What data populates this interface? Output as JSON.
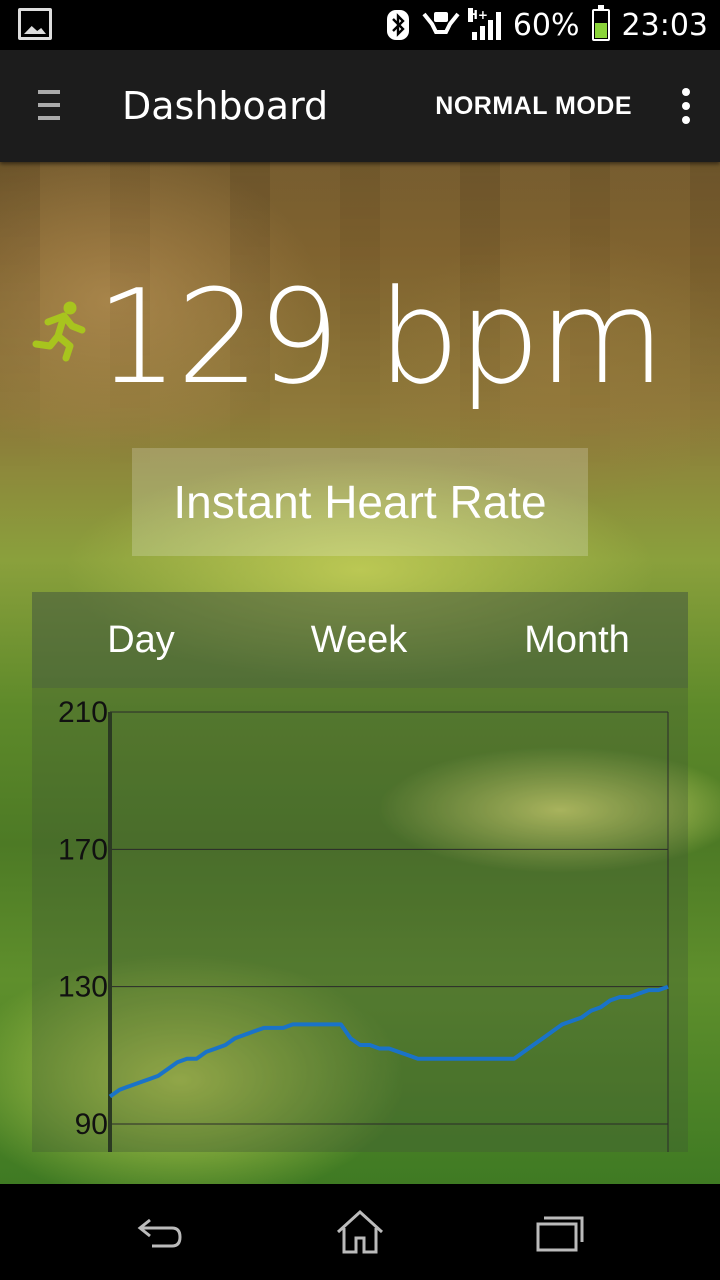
{
  "status_bar": {
    "battery_percent": "60%",
    "time": "23:03",
    "network_type": "H+",
    "icons": [
      "gallery-icon",
      "bluetooth-icon",
      "hands-icon",
      "signal-icon",
      "battery-icon"
    ]
  },
  "action_bar": {
    "title": "Dashboard",
    "mode_button": "NORMAL MODE"
  },
  "heart_rate": {
    "value": "129 bpm",
    "label": "Instant Heart Rate",
    "activity_icon": "running-icon",
    "accent_color": "#a8c41e"
  },
  "tabs": [
    {
      "label": "Day"
    },
    {
      "label": "Week"
    },
    {
      "label": "Month"
    }
  ],
  "chart_data": {
    "type": "line",
    "title": "",
    "xlabel": "",
    "ylabel": "",
    "ylim": [
      90,
      210
    ],
    "yticks": [
      "210",
      "170",
      "130",
      "90"
    ],
    "grid": true,
    "line_color": "#1a73c8",
    "series": [
      {
        "values": [
          98,
          100,
          101,
          102,
          103,
          104,
          106,
          108,
          109,
          109,
          111,
          112,
          113,
          115,
          116,
          117,
          118,
          118,
          118,
          119,
          119,
          119,
          119,
          119,
          119,
          115,
          113,
          113,
          112,
          112,
          111,
          110,
          109,
          109,
          109,
          109,
          109,
          109,
          109,
          109,
          109,
          109,
          109,
          111,
          113,
          115,
          117,
          119,
          120,
          121,
          123,
          124,
          126,
          127,
          127,
          128,
          129,
          129,
          130
        ]
      }
    ]
  },
  "nav_bar": {
    "icons": [
      "back-icon",
      "home-icon",
      "recent-apps-icon"
    ]
  }
}
